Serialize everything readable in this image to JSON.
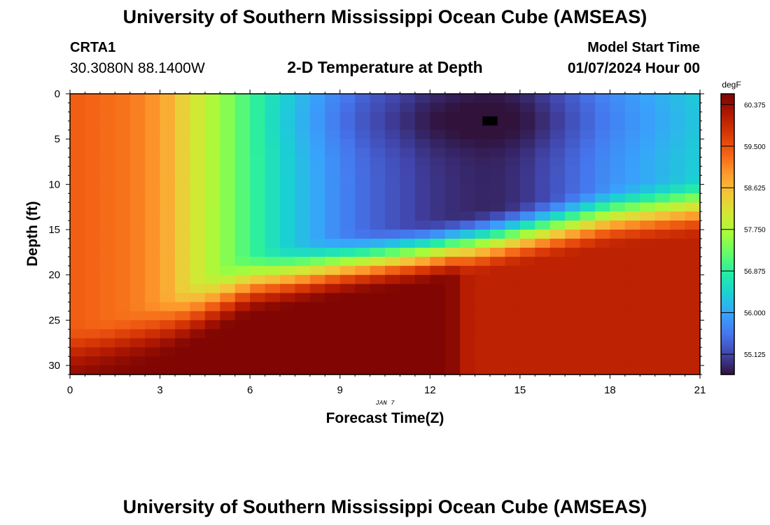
{
  "header": {
    "title": "University of Southern Mississippi Ocean Cube (AMSEAS)",
    "station_name": "CRTA1",
    "station_coords": "30.3080N  88.1400W",
    "plot_subtitle": "2-D Temperature at Depth",
    "start_label": "Model Start Time",
    "start_value": "01/07/2024 Hour 00"
  },
  "footer": {
    "title": "University of Southern Mississippi Ocean Cube (AMSEAS)"
  },
  "chart_data": {
    "type": "heatmap",
    "title": "2-D Temperature at Depth",
    "xlabel": "Forecast Time(Z)",
    "ylabel": "Depth (ft)",
    "date_label": "JAN 7",
    "xlim": [
      0,
      21
    ],
    "ylim": [
      0,
      31
    ],
    "y_inverted": true,
    "x_ticks": [
      "0",
      "3",
      "6",
      "9",
      "12",
      "15",
      "18",
      "21"
    ],
    "y_ticks": [
      "0",
      "5",
      "10",
      "15",
      "20",
      "25",
      "30"
    ],
    "colorbar": {
      "unit": "degF",
      "min": 54.7,
      "max": 60.6,
      "ticks": [
        "60.375",
        "59.500",
        "58.625",
        "57.750",
        "56.875",
        "56.000",
        "55.125"
      ],
      "colors": [
        "#30123b",
        "#4145ab",
        "#4675ed",
        "#39a2fc",
        "#1bcfd4",
        "#24eca6",
        "#61fc6c",
        "#a4fc3b",
        "#d1e834",
        "#f3c63a",
        "#fe9b2d",
        "#f36315",
        "#d93806",
        "#b11901",
        "#7a0403"
      ]
    },
    "grid": {
      "time_steps": 42,
      "depth_rows": 31,
      "time_step_hours": 0.5,
      "depth_step_ft": 1
    },
    "field_model": {
      "surface_temperature_by_hour": [
        [
          0,
          59.4
        ],
        [
          2,
          59.2
        ],
        [
          3,
          58.9
        ],
        [
          4,
          58.2
        ],
        [
          5,
          57.6
        ],
        [
          6,
          57.0
        ],
        [
          7,
          56.5
        ],
        [
          8,
          56.1
        ],
        [
          9,
          55.7
        ],
        [
          10,
          55.4
        ],
        [
          11,
          55.2
        ],
        [
          12,
          55.0
        ],
        [
          13,
          54.9
        ],
        [
          14,
          54.85
        ],
        [
          15,
          54.95
        ],
        [
          16,
          55.2
        ],
        [
          17,
          55.5
        ],
        [
          18,
          55.8
        ],
        [
          19,
          56.0
        ],
        [
          20,
          56.2
        ],
        [
          21,
          56.4
        ]
      ],
      "cold_core_depth_ft": 3,
      "cold_core_depth_spread_ft": 3,
      "cold_core_max_anomaly": 0.25,
      "near_bottom_temperature_left": 60.55,
      "near_bottom_temperature_right": 60.05,
      "near_bottom_transition_hours": [
        12.5,
        13.5
      ],
      "mixing_depth_ft": [
        [
          0,
          30
        ],
        [
          3,
          26
        ],
        [
          6,
          21
        ],
        [
          9,
          19
        ],
        [
          12,
          17.5
        ],
        [
          15,
          15.5
        ],
        [
          18,
          13.5
        ],
        [
          21,
          12.5
        ]
      ],
      "mixing_transition_width_ft": 3.6
    },
    "missing_cells": [
      {
        "hour_start": 13.75,
        "hour_end": 14.25,
        "depth_start_ft": 2.5,
        "depth_end_ft": 3.5
      }
    ]
  }
}
